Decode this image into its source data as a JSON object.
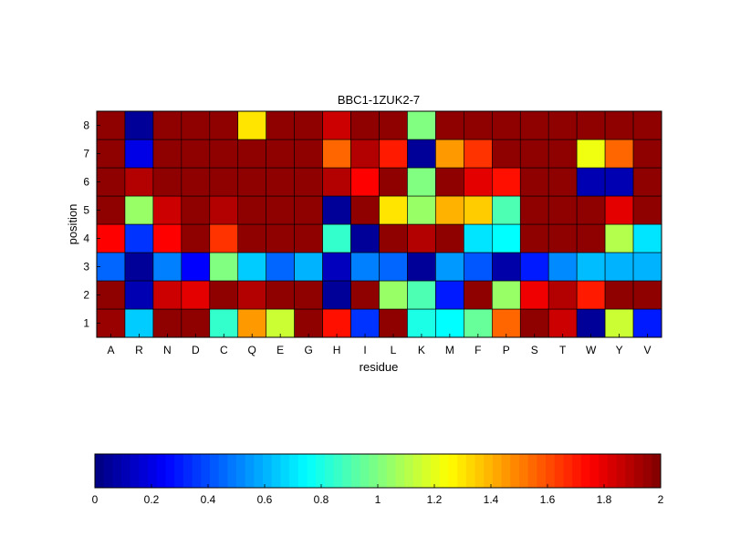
{
  "chart_data": {
    "type": "heatmap",
    "title": "BBC1-1ZUK2-7",
    "xlabel": "residue",
    "ylabel": "position",
    "x_categories": [
      "A",
      "R",
      "N",
      "D",
      "C",
      "Q",
      "E",
      "G",
      "H",
      "I",
      "L",
      "K",
      "M",
      "F",
      "P",
      "S",
      "T",
      "W",
      "Y",
      "V"
    ],
    "y_categories": [
      "1",
      "2",
      "3",
      "4",
      "5",
      "6",
      "7",
      "8"
    ],
    "colormap": "jet",
    "clim": [
      0,
      2
    ],
    "colorbar": {
      "orientation": "horizontal",
      "placement": "bottom",
      "ticks": [
        0,
        0.2,
        0.4,
        0.6,
        0.8,
        1,
        1.2,
        1.4,
        1.6,
        1.8,
        2
      ],
      "tick_labels": [
        "0",
        "0.2",
        "0.4",
        "0.6",
        "0.8",
        "1",
        "1.2",
        "1.4",
        "1.6",
        "1.8",
        "2"
      ]
    },
    "values": [
      [
        1.95,
        0.65,
        1.97,
        1.97,
        0.85,
        1.45,
        1.15,
        1.97,
        1.72,
        0.35,
        1.97,
        0.8,
        0.75,
        0.95,
        1.55,
        1.97,
        1.85,
        0.05,
        1.15,
        0.3
      ],
      [
        1.97,
        0.1,
        1.85,
        1.8,
        1.97,
        1.9,
        1.97,
        1.97,
        0.05,
        1.97,
        1.05,
        0.9,
        0.3,
        1.97,
        1.05,
        1.78,
        1.9,
        1.7,
        1.97,
        1.97
      ],
      [
        0.45,
        0.05,
        0.5,
        0.25,
        1.0,
        0.65,
        0.45,
        0.6,
        0.12,
        0.5,
        0.45,
        0.05,
        0.55,
        0.42,
        0.08,
        0.3,
        0.52,
        0.62,
        0.6,
        0.6
      ],
      [
        1.75,
        0.35,
        1.75,
        1.97,
        1.65,
        1.97,
        1.97,
        1.97,
        0.85,
        0.05,
        1.97,
        1.9,
        1.97,
        0.7,
        0.75,
        1.97,
        1.97,
        1.97,
        1.1,
        0.7
      ],
      [
        1.97,
        1.05,
        1.85,
        1.97,
        1.9,
        1.97,
        1.97,
        1.97,
        0.05,
        1.97,
        1.3,
        1.05,
        1.4,
        1.35,
        0.9,
        1.97,
        1.97,
        1.97,
        1.8,
        1.97
      ],
      [
        1.97,
        1.9,
        1.97,
        1.97,
        1.97,
        1.97,
        1.97,
        1.97,
        1.9,
        1.75,
        1.97,
        1.0,
        1.97,
        1.8,
        1.72,
        1.97,
        1.97,
        0.1,
        0.1,
        1.97
      ],
      [
        1.97,
        0.2,
        1.97,
        1.97,
        1.97,
        1.97,
        1.97,
        1.97,
        1.55,
        1.9,
        1.7,
        0.05,
        1.45,
        1.65,
        1.97,
        1.97,
        1.97,
        1.22,
        1.55,
        1.97
      ],
      [
        1.97,
        0.05,
        1.97,
        1.97,
        1.97,
        1.3,
        1.97,
        1.97,
        1.85,
        1.97,
        1.97,
        1.0,
        1.97,
        1.97,
        1.97,
        1.97,
        1.97,
        1.97,
        1.97,
        1.97
      ]
    ]
  }
}
